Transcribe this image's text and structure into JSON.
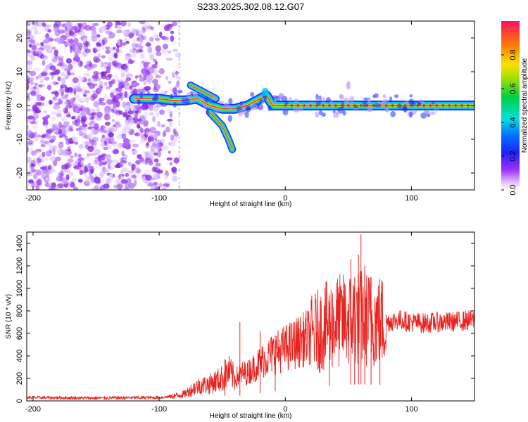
{
  "title": "S233.2025.302.08.12.G07",
  "colors": {
    "snr_line": "#e8231f",
    "track_peak": "#ff1a2a",
    "noise": "#8a2be2",
    "axis": "#000000"
  },
  "chart_data": [
    {
      "type": "heatmap",
      "name": "spectrogram",
      "xlabel": "Height of straight line (km)",
      "ylabel": "Frequency (Hz)",
      "xlim": [
        -205,
        150
      ],
      "ylim": [
        -25,
        25
      ],
      "xticks": [
        -200,
        -100,
        0,
        100
      ],
      "yticks": [
        -20,
        -10,
        0,
        10,
        20
      ],
      "colorbar": {
        "label": "Normalized spectral amplitude",
        "range": [
          0,
          1
        ],
        "ticks": [
          0.0,
          0.2,
          0.4,
          0.6,
          0.8
        ],
        "colormap": "rainbow (magenta-blue-cyan-green-yellow-red)"
      },
      "features": [
        {
          "name": "noise field",
          "x_range": [
            -205,
            -85
          ],
          "y_range": [
            -25,
            25
          ],
          "amplitude": 0.05
        },
        {
          "name": "main track",
          "x": [
            -120,
            -100,
            -90,
            -80,
            -70,
            -60,
            -50,
            -40,
            -30,
            -20,
            -15,
            -10,
            0,
            50,
            100,
            150
          ],
          "y": [
            2,
            2,
            1.5,
            1.5,
            2,
            0,
            -1,
            -1,
            0,
            2,
            3,
            0,
            0,
            0,
            0,
            0
          ]
        },
        {
          "name": "upper branch",
          "x": [
            -75,
            -70,
            -65,
            -60,
            -55
          ],
          "y": [
            6,
            5,
            4,
            3,
            2
          ]
        },
        {
          "name": "lower branch",
          "x": [
            -60,
            -55,
            -50,
            -45,
            -42
          ],
          "y": [
            -2,
            -4,
            -6,
            -10,
            -13
          ]
        }
      ]
    },
    {
      "type": "line",
      "name": "snr",
      "xlabel": "Height of straight line (km)",
      "ylabel": "SNR (10 * v/v)",
      "xlim": [
        -205,
        150
      ],
      "ylim": [
        0,
        1500
      ],
      "xticks": [
        -200,
        -100,
        0,
        100
      ],
      "yticks": [
        0,
        200,
        400,
        600,
        800,
        1000,
        1200,
        1400
      ],
      "series": [
        {
          "name": "SNR",
          "envelope": {
            "x": [
              -205,
              -150,
              -100,
              -90,
              -80,
              -70,
              -60,
              -50,
              -45,
              -40,
              -35,
              -30,
              -20,
              -10,
              0,
              10,
              20,
              30,
              40,
              50,
              60,
              70,
              80,
              90,
              100,
              110,
              120,
              130,
              140,
              150
            ],
            "y": [
              30,
              25,
              30,
              40,
              60,
              130,
              150,
              200,
              260,
              200,
              240,
              250,
              340,
              420,
              470,
              520,
              580,
              650,
              700,
              720,
              740,
              720,
              700,
              720,
              700,
              690,
              700,
              700,
              710,
              720
            ]
          },
          "spikes": [
            {
              "x": -48,
              "y": 370
            },
            {
              "x": -36,
              "y": 700
            },
            {
              "x": -20,
              "y": 620
            },
            {
              "x": -8,
              "y": 580
            },
            {
              "x": 35,
              "y": 860
            },
            {
              "x": 52,
              "y": 1260
            },
            {
              "x": 55,
              "y": 1100
            },
            {
              "x": 58,
              "y": 1300
            },
            {
              "x": 60,
              "y": 1480
            },
            {
              "x": 63,
              "y": 1200
            },
            {
              "x": 68,
              "y": 1100
            },
            {
              "x": 75,
              "y": 920
            }
          ]
        }
      ]
    }
  ]
}
